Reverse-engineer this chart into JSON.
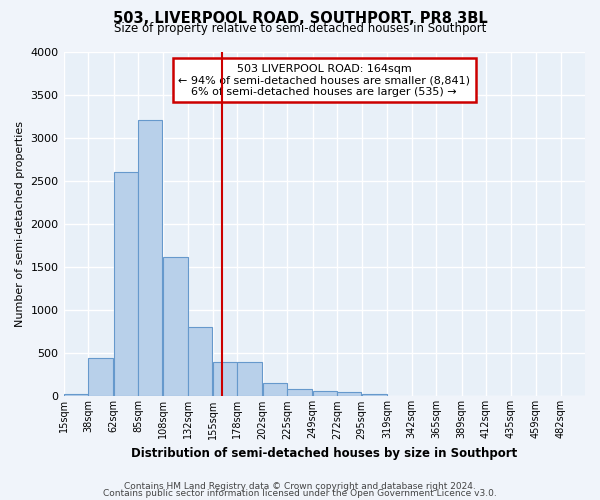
{
  "title": "503, LIVERPOOL ROAD, SOUTHPORT, PR8 3BL",
  "subtitle": "Size of property relative to semi-detached houses in Southport",
  "xlabel": "Distribution of semi-detached houses by size in Southport",
  "ylabel": "Number of semi-detached properties",
  "property_size": 164,
  "property_label": "503 LIVERPOOL ROAD: 164sqm",
  "pct_smaller": 94,
  "n_smaller": 8841,
  "pct_larger": 6,
  "n_larger": 535,
  "bin_labels": [
    "15sqm",
    "38sqm",
    "62sqm",
    "85sqm",
    "108sqm",
    "132sqm",
    "155sqm",
    "178sqm",
    "202sqm",
    "225sqm",
    "249sqm",
    "272sqm",
    "295sqm",
    "319sqm",
    "342sqm",
    "365sqm",
    "389sqm",
    "412sqm",
    "435sqm",
    "459sqm",
    "482sqm"
  ],
  "bin_edges": [
    15,
    38,
    62,
    85,
    108,
    132,
    155,
    178,
    202,
    225,
    249,
    272,
    295,
    319,
    342,
    365,
    389,
    412,
    435,
    459,
    482,
    505
  ],
  "bar_values": [
    30,
    450,
    2600,
    3200,
    1620,
    800,
    400,
    400,
    160,
    80,
    60,
    50,
    30,
    0,
    0,
    0,
    0,
    0,
    0,
    0,
    0
  ],
  "bar_color": "#b8d0ea",
  "bar_edge_color": "#6699cc",
  "highlight_color": "#cc0000",
  "fig_bg_color": "#f0f4fa",
  "plot_bg_color": "#e8f0f8",
  "grid_color": "#ffffff",
  "ylim": [
    0,
    4000
  ],
  "yticks": [
    0,
    500,
    1000,
    1500,
    2000,
    2500,
    3000,
    3500,
    4000
  ],
  "annotation_box_color": "#ffffff",
  "annotation_box_edge": "#cc0000",
  "footer_line1": "Contains HM Land Registry data © Crown copyright and database right 2024.",
  "footer_line2": "Contains public sector information licensed under the Open Government Licence v3.0."
}
